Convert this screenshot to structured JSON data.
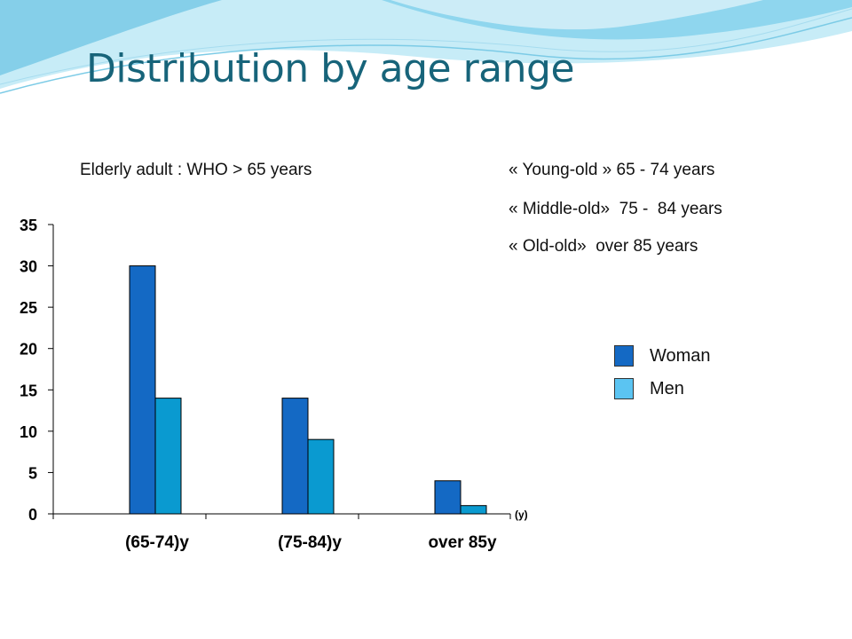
{
  "slide": {
    "title": "Distribution by age range",
    "note_left": "Elderly adult : WHO > 65 years",
    "notes_right": [
      "« Young-old » 65 - 74 years",
      "« Middle-old»  75 -  84 years",
      "« Old-old»  over 85 years"
    ]
  },
  "colors": {
    "title": "#17647a",
    "woman": "#1469c4",
    "men_bar": "#0a9ad0",
    "men_legend": "#5bc4f2",
    "wave_light": "#bfe9f5",
    "wave_mid": "#6cc9e8"
  },
  "chart_data": {
    "type": "bar",
    "categories": [
      "(65-74)y",
      "(75-84)y",
      "over 85y"
    ],
    "series": [
      {
        "name": "Woman",
        "values": [
          30,
          14,
          4
        ]
      },
      {
        "name": "Men",
        "values": [
          14,
          9,
          1
        ]
      }
    ],
    "ylim": [
      0,
      35
    ],
    "yticks": [
      "0",
      "5",
      "10",
      "15",
      "20",
      "25",
      "30",
      "35"
    ],
    "x_unit": "(y)",
    "legend_position": "right",
    "grid": false
  }
}
